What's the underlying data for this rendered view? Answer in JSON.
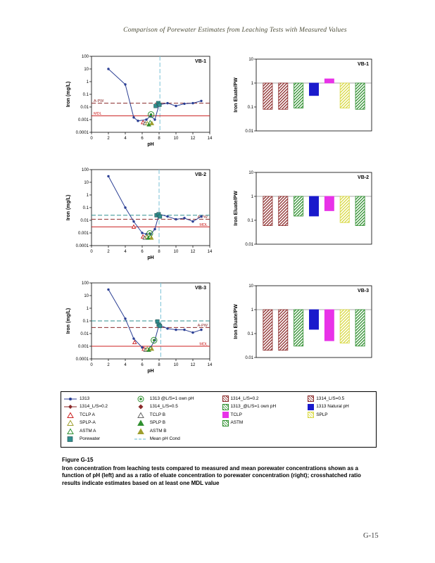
{
  "page": {
    "header": "Comparison of Porewater Estimates from Leaching Tests with Measured Values",
    "caption_title": "Figure G-15",
    "caption_body": "Iron concentration from leaching tests compared to measured and mean porewater concentrations shown as a function of pH (left) and as a ratio of eluate concentration to porewater concentration (right); crosshatched ratio results indicate estimates based on at least one MDL value",
    "page_number": "G-15"
  },
  "colors": {
    "navy": "#2b3f94",
    "darkred": "#8b2a2a",
    "red": "#cc2222",
    "green": "#2f8f2f",
    "olive": "#9f9f2f",
    "blue": "#1a1acc",
    "magenta": "#e832e8",
    "yellow": "#d8d840",
    "teal": "#2f8f8f",
    "cyan": "#85c7da",
    "gray": "#666666"
  },
  "chart_data": [
    {
      "id": "vb1-scatter",
      "type": "scatter",
      "panel": "VB-1",
      "xlabel": "pH",
      "ylabel": "Iron (mg/L)",
      "xlim": [
        0,
        14
      ],
      "xticks": [
        0,
        2,
        4,
        6,
        8,
        10,
        12,
        14
      ],
      "ylim": [
        0.0001,
        100
      ],
      "yticks": [
        "100",
        "10",
        "1",
        "0.1",
        "0.01",
        "0.001",
        "0.0001"
      ],
      "series": [
        {
          "name": "1313",
          "type": "line",
          "color": "navy",
          "x": [
            2,
            4,
            5,
            5.5,
            6.5,
            7,
            7.5,
            8,
            9,
            10,
            11,
            12,
            13
          ],
          "y": [
            10,
            0.6,
            0.0015,
            0.0008,
            0.001,
            0.002,
            0.001,
            0.015,
            0.02,
            0.012,
            0.018,
            0.02,
            0.03
          ]
        },
        {
          "name": "1313 @L/S=1 own pH",
          "type": "circled",
          "color": "green",
          "x": [
            7.05
          ],
          "y": [
            0.0025
          ]
        },
        {
          "name": "TCLP A",
          "type": "triangle",
          "fill": "open",
          "color": "red",
          "x": [
            6.1
          ],
          "y": [
            0.0006
          ]
        },
        {
          "name": "TCLP B",
          "type": "triangle",
          "fill": "open",
          "color": "gray",
          "x": [
            6.35
          ],
          "y": [
            0.0005
          ]
        },
        {
          "name": "SPLP-A",
          "type": "triangle",
          "fill": "open",
          "color": "olive",
          "x": [
            6.6
          ],
          "y": [
            0.0005
          ]
        },
        {
          "name": "SPLP B",
          "type": "triangle",
          "fill": "filled",
          "color": "green",
          "x": [
            6.8
          ],
          "y": [
            0.0004
          ]
        },
        {
          "name": "ASTM A",
          "type": "triangle",
          "fill": "open",
          "color": "green",
          "x": [
            6.95
          ],
          "y": [
            0.0006
          ]
        },
        {
          "name": "ASTM B",
          "type": "triangle",
          "fill": "filled",
          "color": "olive",
          "x": [
            7.15
          ],
          "y": [
            0.0005
          ]
        },
        {
          "name": "Porewater",
          "type": "square",
          "color": "teal",
          "x": [
            7.6,
            7.9,
            8.05
          ],
          "y": [
            0.012,
            0.02,
            0.015
          ]
        }
      ],
      "hlines": [
        {
          "y": 0.02,
          "style": "dashed",
          "color": "darkred",
          "label": "A-PW",
          "label_side": "left"
        },
        {
          "y": 0.002,
          "style": "solid",
          "color": "red",
          "label": "MDL",
          "label_side": "left"
        }
      ],
      "vlines": [
        {
          "x": 8.1,
          "color": "cyan",
          "name": "Mean pH Cond"
        }
      ]
    },
    {
      "id": "vb1-ratio",
      "type": "bar",
      "panel": "VB-1",
      "ylabel": "Iron Eluate/PW",
      "ylim": [
        0.01,
        10
      ],
      "yticks": [
        "10",
        "1",
        "0.1",
        "0.01"
      ],
      "baseline": 1,
      "categories": [
        "1314_L/S=0.2",
        "1314_L/S=0.5",
        "1313_@L/S=1 own pH",
        "1313 Natural pH",
        "TCLP",
        "SPLP",
        "ASTM"
      ],
      "values": [
        0.08,
        0.08,
        0.09,
        0.3,
        1.5,
        0.09,
        0.08
      ],
      "fills": [
        "hatch-darkred",
        "hatch-darkred",
        "hatch-green",
        "solid-blue",
        "solid-magenta",
        "hatch-yellow",
        "hatch-green"
      ]
    },
    {
      "id": "vb2-scatter",
      "type": "scatter",
      "panel": "VB-2",
      "xlabel": "pH",
      "ylabel": "Iron (mg/L)",
      "xlim": [
        0,
        14
      ],
      "xticks": [
        0,
        2,
        4,
        6,
        8,
        10,
        12,
        14
      ],
      "ylim": [
        0.0001,
        100
      ],
      "yticks": [
        "100",
        "10",
        "1",
        "0.1",
        "0.01",
        "0.001",
        "0.0001"
      ],
      "series": [
        {
          "name": "1313",
          "type": "line",
          "color": "navy",
          "x": [
            2,
            4,
            5,
            6,
            6.5,
            7,
            7.5,
            8,
            9,
            10,
            11,
            12,
            13
          ],
          "y": [
            30,
            0.1,
            0.008,
            0.001,
            0.0008,
            0.0008,
            0.002,
            0.03,
            0.02,
            0.012,
            0.015,
            0.008,
            0.02
          ]
        },
        {
          "name": "1313 @L/S=1 own pH",
          "type": "circled",
          "color": "green",
          "x": [
            6.9
          ],
          "y": [
            0.0009
          ]
        },
        {
          "name": "TCLP A",
          "type": "triangle",
          "fill": "open",
          "color": "red",
          "x": [
            5,
            6.1
          ],
          "y": [
            0.003,
            0.0005
          ]
        },
        {
          "name": "TCLP B",
          "type": "triangle",
          "fill": "open",
          "color": "gray",
          "x": [
            6.3
          ],
          "y": [
            0.0004
          ]
        },
        {
          "name": "SPLP-A",
          "type": "triangle",
          "fill": "open",
          "color": "olive",
          "x": [
            6.55
          ],
          "y": [
            0.0005
          ]
        },
        {
          "name": "SPLP B",
          "type": "triangle",
          "fill": "filled",
          "color": "green",
          "x": [
            6.75
          ],
          "y": [
            0.0004
          ]
        },
        {
          "name": "ASTM A",
          "type": "triangle",
          "fill": "open",
          "color": "green",
          "x": [
            6.95
          ],
          "y": [
            0.0005
          ]
        },
        {
          "name": "ASTM B",
          "type": "triangle",
          "fill": "filled",
          "color": "olive",
          "x": [
            7.1
          ],
          "y": [
            0.0004
          ]
        },
        {
          "name": "Porewater",
          "type": "square",
          "color": "teal",
          "x": [
            7.7,
            7.95,
            8.1
          ],
          "y": [
            0.025,
            0.03,
            0.02
          ]
        }
      ],
      "hlines": [
        {
          "y": 0.025,
          "style": "dashed",
          "color": "teal"
        },
        {
          "y": 0.012,
          "style": "dashed",
          "color": "darkred",
          "label": "A-PW",
          "label_side": "right"
        },
        {
          "y": 0.003,
          "style": "solid",
          "color": "red",
          "label": "MDL",
          "label_side": "right"
        }
      ],
      "vlines": [
        {
          "x": 8.0,
          "color": "cyan",
          "name": "Mean pH Cond"
        }
      ]
    },
    {
      "id": "vb2-ratio",
      "type": "bar",
      "panel": "VB-2",
      "ylabel": "Iron Eluate/PW",
      "ylim": [
        0.01,
        10
      ],
      "yticks": [
        "10",
        "1",
        "0.1",
        "0.01"
      ],
      "baseline": 1,
      "categories": [
        "1314_L/S=0.2",
        "1314_L/S=0.5",
        "1313_@L/S=1 own pH",
        "1313 Natural pH",
        "TCLP",
        "SPLP",
        "ASTM"
      ],
      "values": [
        0.06,
        0.06,
        0.15,
        0.15,
        0.25,
        0.08,
        0.06
      ],
      "fills": [
        "hatch-darkred",
        "hatch-darkred",
        "hatch-green",
        "solid-blue",
        "solid-magenta",
        "hatch-yellow",
        "hatch-green"
      ]
    },
    {
      "id": "vb3-scatter",
      "type": "scatter",
      "panel": "VB-3",
      "xlabel": "pH",
      "ylabel": "Iron (mg/L)",
      "xlim": [
        0,
        14
      ],
      "xticks": [
        0,
        2,
        4,
        6,
        8,
        10,
        12,
        14
      ],
      "ylim": [
        0.0001,
        100
      ],
      "yticks": [
        "100",
        "10",
        "1",
        "0.1",
        "0.01",
        "0.001",
        "0.0001"
      ],
      "series": [
        {
          "name": "1313",
          "type": "line",
          "color": "navy",
          "x": [
            2,
            4,
            5,
            6,
            6.5,
            7,
            7.5,
            8,
            9,
            10,
            11,
            12,
            13
          ],
          "y": [
            30,
            0.15,
            0.004,
            0.0008,
            0.0006,
            0.0008,
            0.003,
            0.05,
            0.025,
            0.02,
            0.02,
            0.012,
            0.02
          ]
        },
        {
          "name": "1313 @L/S=1 own pH",
          "type": "circled",
          "color": "green",
          "x": [
            7.4
          ],
          "y": [
            0.003
          ]
        },
        {
          "name": "TCLP A",
          "type": "triangle",
          "fill": "open",
          "color": "red",
          "x": [
            5.1,
            6.2
          ],
          "y": [
            0.002,
            0.0006
          ]
        },
        {
          "name": "TCLP B",
          "type": "triangle",
          "fill": "open",
          "color": "gray",
          "x": [
            6.4
          ],
          "y": [
            0.0005
          ]
        },
        {
          "name": "SPLP-A",
          "type": "triangle",
          "fill": "open",
          "color": "olive",
          "x": [
            6.6
          ],
          "y": [
            0.0006
          ]
        },
        {
          "name": "SPLP B",
          "type": "triangle",
          "fill": "filled",
          "color": "green",
          "x": [
            6.8
          ],
          "y": [
            0.0005
          ]
        },
        {
          "name": "ASTM A",
          "type": "triangle",
          "fill": "open",
          "color": "green",
          "x": [
            7.0
          ],
          "y": [
            0.0007
          ]
        },
        {
          "name": "ASTM B",
          "type": "triangle",
          "fill": "filled",
          "color": "olive",
          "x": [
            7.15
          ],
          "y": [
            0.0006
          ]
        },
        {
          "name": "Porewater",
          "type": "square",
          "color": "teal",
          "x": [
            7.8,
            7.95,
            8.1
          ],
          "y": [
            0.09,
            0.05,
            0.04
          ]
        }
      ],
      "hlines": [
        {
          "y": 0.1,
          "style": "dashed",
          "color": "teal"
        },
        {
          "y": 0.03,
          "style": "dashed",
          "color": "darkred",
          "label": "A-PW",
          "label_side": "right"
        },
        {
          "y": 0.001,
          "style": "solid",
          "color": "red",
          "label": "MDL",
          "label_side": "right"
        }
      ],
      "vlines": [
        {
          "x": 8.2,
          "color": "cyan",
          "name": "Mean pH Cond"
        }
      ]
    },
    {
      "id": "vb3-ratio",
      "type": "bar",
      "panel": "VB-3",
      "ylabel": "Iron Eluate/PW",
      "ylim": [
        0.01,
        10
      ],
      "yticks": [
        "10",
        "1",
        "0.1",
        "0.01"
      ],
      "baseline": 1,
      "categories": [
        "1314_L/S=0.2",
        "1314_L/S=0.5",
        "1313_@L/S=1 own pH",
        "1313 Natural pH",
        "TCLP",
        "SPLP",
        "ASTM"
      ],
      "values": [
        0.02,
        0.02,
        0.03,
        0.15,
        0.05,
        0.04,
        0.03
      ],
      "fills": [
        "hatch-darkred",
        "hatch-darkred",
        "hatch-green",
        "solid-blue",
        "solid-magenta",
        "hatch-yellow",
        "hatch-green"
      ]
    }
  ],
  "legend": {
    "scatter_col1": [
      {
        "marker": "line-dot",
        "color": "navy",
        "label": "1313"
      },
      {
        "marker": "line-diamond",
        "color": "darkred",
        "label": "1314_L/S=0.2"
      },
      {
        "marker": "triangle-open",
        "color": "red",
        "label": "TCLP A"
      },
      {
        "marker": "triangle-open",
        "color": "olive",
        "label": "SPLP-A"
      },
      {
        "marker": "triangle-open",
        "color": "green",
        "label": "ASTM A"
      },
      {
        "marker": "square",
        "color": "teal",
        "label": "Porewater"
      }
    ],
    "scatter_col2": [
      {
        "marker": "circle-ring",
        "color": "green",
        "label": "1313  @L/S=1 own pH"
      },
      {
        "marker": "diamond",
        "color": "darkred",
        "label": "1314_L/S=0.5"
      },
      {
        "marker": "triangle-open",
        "color": "gray",
        "label": "TCLP B"
      },
      {
        "marker": "triangle-filled",
        "color": "green",
        "label": "SPLP B"
      },
      {
        "marker": "triangle-filled",
        "color": "olive",
        "label": "ASTM B"
      },
      {
        "marker": "dashed-line",
        "color": "cyan",
        "label": "Mean pH Cond"
      }
    ],
    "bars_col1": [
      {
        "fill": "hatch-darkred",
        "label": "1314_L/S=0.2"
      },
      {
        "fill": "hatch-green",
        "label": "1313_@L/S=1 own pH"
      },
      {
        "fill": "solid-magenta",
        "label": "TCLP"
      },
      {
        "fill": "hatch-green",
        "label": "ASTM"
      }
    ],
    "bars_col2": [
      {
        "fill": "hatch-darkred",
        "label": "1314_L/S=0.5"
      },
      {
        "fill": "solid-blue",
        "label": "1313 Natural pH"
      },
      {
        "fill": "hatch-yellow",
        "label": "SPLP"
      }
    ]
  }
}
